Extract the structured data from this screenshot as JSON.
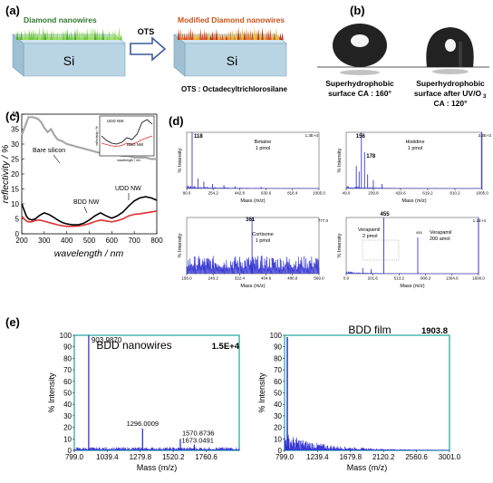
{
  "panels": {
    "a": {
      "label": "(a)",
      "left_block_title": "Diamond nanowires",
      "substrate": "Si",
      "arrow_label": "OTS",
      "right_block_title": "Modified Diamond nanowires",
      "substrate_right": "Si",
      "footnote": "OTS : Octadecyltrichlorosilane"
    },
    "b": {
      "label": "(b)",
      "left_caption": [
        "Superhydrophobic",
        "surface CA : 160°"
      ],
      "right_caption": [
        "Superhydrophobic",
        "surface after UV/O",
        "CA : 120°"
      ],
      "subscript": "3"
    },
    "c": {
      "label": "(c)"
    },
    "d": {
      "label": "(d)"
    },
    "e": {
      "label": "(e)"
    }
  },
  "chart_data": [
    {
      "id": "c",
      "type": "line",
      "xlabel": "wavelength / nm",
      "ylabel": "reflectivity / %",
      "xlim": [
        200,
        800
      ],
      "ylim": [
        0,
        40
      ],
      "xticks": [
        "200",
        "300",
        "400",
        "500",
        "600",
        "700",
        "800"
      ],
      "yticks": [
        "0",
        "5",
        "10",
        "15",
        "20",
        "25",
        "30",
        "35",
        "40"
      ],
      "annotations": [
        "Bare silicon",
        "BDD NW",
        "UDD NW"
      ],
      "series": [
        {
          "name": "Bare silicon",
          "color": "#a8a8a8",
          "x": [
            200,
            215,
            230,
            250,
            270,
            285,
            300,
            315,
            330,
            345,
            360,
            380,
            400,
            425,
            450,
            475,
            500,
            525,
            550,
            575,
            600,
            625,
            650,
            675,
            700,
            725,
            750,
            775,
            800
          ],
          "y": [
            33,
            36,
            39,
            39,
            38.5,
            37.5,
            35.5,
            34,
            35,
            33,
            31.5,
            31,
            30,
            29.5,
            29,
            28.5,
            28,
            27.5,
            27,
            27,
            26.5,
            26.5,
            26,
            26,
            25.5,
            25.5,
            25.5,
            25,
            25
          ]
        },
        {
          "name": "BDD NW",
          "color": "#e03030",
          "x": [
            200,
            210,
            220,
            230,
            245,
            260,
            280,
            300,
            320,
            340,
            360,
            380,
            400,
            425,
            450,
            475,
            500,
            525,
            550,
            575,
            600,
            625,
            650,
            675,
            700,
            725,
            750,
            775,
            800
          ],
          "y": [
            6,
            5,
            4.3,
            4,
            4,
            4.5,
            4.6,
            4.2,
            3.8,
            3.4,
            3,
            2.7,
            2.5,
            2.5,
            2.6,
            2.9,
            3.4,
            4.1,
            4.6,
            4.3,
            4,
            4.4,
            5,
            6,
            6.5,
            6.7,
            7,
            7.3,
            7.6
          ]
        },
        {
          "name": "UDD NW",
          "color": "#000000",
          "x": [
            200,
            210,
            220,
            230,
            245,
            260,
            280,
            300,
            320,
            340,
            360,
            380,
            400,
            425,
            450,
            475,
            500,
            525,
            550,
            575,
            600,
            625,
            650,
            675,
            700,
            725,
            750,
            775,
            800
          ],
          "y": [
            10,
            8,
            6,
            5,
            4.6,
            5,
            6.2,
            7,
            6.5,
            5.6,
            4.6,
            3.8,
            3.3,
            3,
            3,
            3.5,
            4.6,
            6,
            7,
            6,
            5.2,
            6,
            7.3,
            9.3,
            11,
            12,
            12.4,
            12,
            11.2
          ]
        }
      ],
      "inset": {
        "labels": [
          "UDD NW",
          "BDD NW"
        ],
        "xlabel": "wavelength / nm",
        "ylabel": "reflectivity / %",
        "x": [
          300,
          350,
          400,
          450,
          500,
          550,
          600,
          650,
          700,
          750,
          800
        ],
        "y_udd": [
          4,
          3,
          2.4,
          2.2,
          2.6,
          3.6,
          3.2,
          4.4,
          7,
          7.6,
          6.6
        ],
        "y_bdd": [
          2.4,
          2.1,
          1.8,
          1.7,
          1.9,
          2.4,
          2.1,
          2.6,
          3.2,
          3.6,
          4
        ]
      }
    },
    {
      "id": "d1",
      "type": "line",
      "title": "Betaine",
      "subtitle": "1 pmol",
      "peak_label": "118",
      "scale_label": "1.3E+4",
      "ylabel": "% Intensity",
      "xlabel": "Mass (m/z)",
      "xticks": [
        "80.0",
        "254.2",
        "442.8",
        "630.6",
        "818.4",
        "1005.0"
      ],
      "xlim": [
        80,
        1005
      ],
      "ylim": [
        0,
        100
      ],
      "peaks": [
        {
          "x": 118,
          "y": 100
        },
        {
          "x": 160,
          "y": 18
        },
        {
          "x": 200,
          "y": 12
        },
        {
          "x": 260,
          "y": 8
        },
        {
          "x": 340,
          "y": 6
        },
        {
          "x": 420,
          "y": 4
        },
        {
          "x": 600,
          "y": 3
        }
      ]
    },
    {
      "id": "d2",
      "type": "line",
      "title": "Histidine",
      "subtitle": "1 pmol",
      "peak_label": "156",
      "peak_label2": "178",
      "scale_label": "3.2E+3",
      "ylabel": "% Intensity",
      "xlabel": "Mass (m/z)",
      "xticks": [
        "49.0",
        "239.8",
        "429.6",
        "619.2",
        "810.2",
        "1005.0"
      ],
      "xlim": [
        49,
        1005
      ],
      "ylim": [
        0,
        100
      ],
      "peaks": [
        {
          "x": 156,
          "y": 100
        },
        {
          "x": 178,
          "y": 65
        },
        {
          "x": 120,
          "y": 40
        },
        {
          "x": 140,
          "y": 30
        },
        {
          "x": 200,
          "y": 25
        },
        {
          "x": 240,
          "y": 15
        },
        {
          "x": 300,
          "y": 8
        },
        {
          "x": 1000,
          "y": 100
        }
      ]
    },
    {
      "id": "d3",
      "type": "line",
      "title": "Cortisone",
      "subtitle": "1 pmol",
      "peak_label": "361",
      "scale_label": "777.0",
      "ylabel": "% Intensity",
      "xlabel": "Mass (m/z)",
      "xticks": [
        "158.0",
        "240.2",
        "322.4",
        "404.6",
        "486.8",
        "569.0"
      ],
      "xlim": [
        158,
        569
      ],
      "ylim": [
        0,
        100
      ],
      "peaks": [
        {
          "x": 361,
          "y": 100
        }
      ]
    },
    {
      "id": "d4",
      "type": "line",
      "title": "Verapamil",
      "subtitle": "200 amol",
      "title2": "Verapamil",
      "subtitle2": "2 pmol",
      "peak_label": "455",
      "peak_label2": "455",
      "scale_label": "1.1E+4",
      "ylabel": "% Intensity",
      "xlabel": "Mass (m/z)",
      "xticks": [
        "0.0",
        "201.6",
        "513.2",
        "908.2",
        "1304.6",
        "1600.0"
      ],
      "xlim": [
        0,
        1600
      ],
      "ylim": [
        0,
        100
      ],
      "peaks": [
        {
          "x": 455,
          "y": 100
        },
        {
          "x": 200,
          "y": 10
        },
        {
          "x": 300,
          "y": 8
        },
        {
          "x": 1600,
          "y": 100
        }
      ]
    },
    {
      "id": "e1",
      "type": "line",
      "title": "BDD nanowires",
      "scale_label": "1.5E+4",
      "ylabel": "% Intensity",
      "xlabel": "Mass (m/z)",
      "xticks": [
        "799.0",
        "1039.4",
        "1279.8",
        "1520.2",
        "1760.6"
      ],
      "yticks": [
        "0",
        "10",
        "20",
        "30",
        "40",
        "50",
        "60",
        "70",
        "80",
        "90",
        "100"
      ],
      "xlim": [
        799,
        2000
      ],
      "ylim": [
        0,
        100
      ],
      "peak_labels": [
        {
          "text": "903.9870",
          "x": 903.987,
          "y": 100
        },
        {
          "text": "1296.0009",
          "x": 1296.0,
          "y": 19
        },
        {
          "text": "1570.8736",
          "x": 1570.87,
          "y": 10
        },
        {
          "text": "1673.0491",
          "x": 1673.05,
          "y": 5
        }
      ]
    },
    {
      "id": "e2",
      "type": "line",
      "title": "BDD film",
      "scale_label": "1903.8",
      "ylabel": "% Intensity",
      "xlabel": "Mass (m/z)",
      "xticks": [
        "799.0",
        "1239.4",
        "1679.8",
        "2120.2",
        "2560.6",
        "3001.0"
      ],
      "yticks": [
        "0",
        "10",
        "20",
        "30",
        "40",
        "50",
        "60",
        "70",
        "80",
        "90",
        "100"
      ],
      "xlim": [
        799,
        3001
      ],
      "ylim": [
        0,
        100
      ]
    }
  ]
}
